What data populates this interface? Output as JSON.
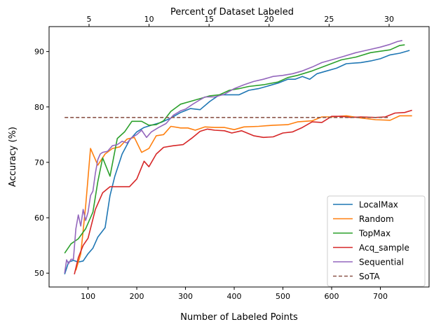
{
  "chart_data": {
    "type": "line",
    "title": "",
    "xlabel": "Number of Labeled Points",
    "ylabel": "Accuracy (%)",
    "top_xlabel": "Percent of Dataset Labeled",
    "xlim": [
      20,
      800
    ],
    "ylim": [
      47.5,
      94.5
    ],
    "top_xlim": [
      1.67,
      33.33
    ],
    "x_ticks": [
      100,
      200,
      300,
      400,
      500,
      600,
      700
    ],
    "y_ticks": [
      50,
      60,
      70,
      80,
      90
    ],
    "top_ticks": [
      5,
      10,
      15,
      20,
      25,
      30
    ],
    "grid": false,
    "legend_position": "lower-right",
    "series": [
      {
        "name": "LocalMax",
        "color": "#1f77b4",
        "points": [
          [
            52,
            49.8
          ],
          [
            60,
            52
          ],
          [
            70,
            52.3
          ],
          [
            80,
            52
          ],
          [
            90,
            52.2
          ],
          [
            100,
            53.5
          ],
          [
            110,
            54.5
          ],
          [
            120,
            56.5
          ],
          [
            135,
            58.2
          ],
          [
            145,
            64
          ],
          [
            155,
            67.5
          ],
          [
            170,
            71.5
          ],
          [
            185,
            74
          ],
          [
            200,
            75.5
          ],
          [
            215,
            76.3
          ],
          [
            230,
            76.7
          ],
          [
            250,
            77.2
          ],
          [
            270,
            78
          ],
          [
            290,
            79
          ],
          [
            310,
            79.7
          ],
          [
            330,
            79.5
          ],
          [
            350,
            81
          ],
          [
            370,
            82.2
          ],
          [
            390,
            82.2
          ],
          [
            410,
            82.2
          ],
          [
            430,
            83
          ],
          [
            450,
            83.3
          ],
          [
            470,
            83.8
          ],
          [
            490,
            84.3
          ],
          [
            510,
            85
          ],
          [
            525,
            85
          ],
          [
            540,
            85.5
          ],
          [
            555,
            85
          ],
          [
            570,
            86
          ],
          [
            590,
            86.5
          ],
          [
            610,
            87
          ],
          [
            630,
            87.8
          ],
          [
            660,
            88
          ],
          [
            680,
            88.3
          ],
          [
            700,
            88.7
          ],
          [
            720,
            89.4
          ],
          [
            740,
            89.7
          ],
          [
            760,
            90.2
          ]
        ]
      },
      {
        "name": "Random",
        "color": "#ff7f0e",
        "points": [
          [
            75,
            50.5
          ],
          [
            85,
            53.5
          ],
          [
            95,
            62
          ],
          [
            105,
            72.5
          ],
          [
            120,
            69.5
          ],
          [
            135,
            71.5
          ],
          [
            150,
            72.5
          ],
          [
            165,
            72.8
          ],
          [
            180,
            74.2
          ],
          [
            195,
            74.5
          ],
          [
            210,
            71.8
          ],
          [
            225,
            72.5
          ],
          [
            240,
            74.8
          ],
          [
            255,
            75
          ],
          [
            270,
            76.5
          ],
          [
            290,
            76.2
          ],
          [
            305,
            76.2
          ],
          [
            320,
            75.8
          ],
          [
            340,
            76.4
          ],
          [
            360,
            76.3
          ],
          [
            380,
            76.3
          ],
          [
            400,
            75.9
          ],
          [
            420,
            76.4
          ],
          [
            450,
            76.5
          ],
          [
            480,
            76.7
          ],
          [
            510,
            76.8
          ],
          [
            530,
            77.3
          ],
          [
            560,
            77.5
          ],
          [
            580,
            78.2
          ],
          [
            600,
            78.2
          ],
          [
            630,
            78.4
          ],
          [
            660,
            78
          ],
          [
            690,
            77.7
          ],
          [
            720,
            77.6
          ],
          [
            740,
            78.4
          ],
          [
            765,
            78.4
          ]
        ]
      },
      {
        "name": "TopMax",
        "color": "#2ca02c",
        "points": [
          [
            52,
            53.6
          ],
          [
            65,
            55.3
          ],
          [
            80,
            56.2
          ],
          [
            95,
            58
          ],
          [
            110,
            61
          ],
          [
            120,
            66.5
          ],
          [
            130,
            70.8
          ],
          [
            145,
            67.5
          ],
          [
            160,
            74.3
          ],
          [
            175,
            75.5
          ],
          [
            190,
            77.4
          ],
          [
            210,
            77.4
          ],
          [
            225,
            76.7
          ],
          [
            240,
            76.8
          ],
          [
            255,
            77.5
          ],
          [
            270,
            79.2
          ],
          [
            290,
            80.5
          ],
          [
            310,
            81
          ],
          [
            330,
            81.5
          ],
          [
            350,
            82
          ],
          [
            370,
            82.2
          ],
          [
            390,
            83
          ],
          [
            410,
            83.3
          ],
          [
            430,
            83.7
          ],
          [
            460,
            84
          ],
          [
            490,
            84.5
          ],
          [
            510,
            85.3
          ],
          [
            530,
            85.7
          ],
          [
            560,
            86.5
          ],
          [
            590,
            87.5
          ],
          [
            620,
            88.5
          ],
          [
            650,
            89
          ],
          [
            680,
            89.8
          ],
          [
            720,
            90.3
          ],
          [
            740,
            91.1
          ],
          [
            750,
            91.2
          ]
        ]
      },
      {
        "name": "Acq_sample",
        "color": "#d62728",
        "points": [
          [
            72,
            49.8
          ],
          [
            80,
            52.8
          ],
          [
            90,
            55
          ],
          [
            100,
            56.3
          ],
          [
            115,
            61.5
          ],
          [
            130,
            64.5
          ],
          [
            145,
            65.6
          ],
          [
            165,
            65.6
          ],
          [
            185,
            65.6
          ],
          [
            200,
            67
          ],
          [
            215,
            70.2
          ],
          [
            225,
            69.2
          ],
          [
            240,
            71.5
          ],
          [
            255,
            72.7
          ],
          [
            275,
            73
          ],
          [
            295,
            73.2
          ],
          [
            315,
            74.5
          ],
          [
            330,
            75.6
          ],
          [
            345,
            76
          ],
          [
            360,
            75.8
          ],
          [
            380,
            75.7
          ],
          [
            395,
            75.3
          ],
          [
            415,
            75.7
          ],
          [
            440,
            74.8
          ],
          [
            460,
            74.5
          ],
          [
            480,
            74.6
          ],
          [
            500,
            75.3
          ],
          [
            520,
            75.5
          ],
          [
            540,
            76.3
          ],
          [
            560,
            77.3
          ],
          [
            580,
            77.2
          ],
          [
            600,
            78.3
          ],
          [
            620,
            78.3
          ],
          [
            640,
            78.1
          ],
          [
            660,
            78.2
          ],
          [
            690,
            78.1
          ],
          [
            710,
            78.2
          ],
          [
            730,
            78.9
          ],
          [
            750,
            79
          ],
          [
            765,
            79.4
          ]
        ]
      },
      {
        "name": "Sequential",
        "color": "#9467bd",
        "points": [
          [
            52,
            50
          ],
          [
            56,
            52.4
          ],
          [
            60,
            51.7
          ],
          [
            65,
            52.5
          ],
          [
            70,
            52.5
          ],
          [
            75,
            58
          ],
          [
            80,
            60.5
          ],
          [
            85,
            58.5
          ],
          [
            90,
            61.5
          ],
          [
            95,
            59.5
          ],
          [
            100,
            61
          ],
          [
            105,
            64
          ],
          [
            110,
            64.8
          ],
          [
            115,
            68
          ],
          [
            120,
            70.5
          ],
          [
            125,
            71.5
          ],
          [
            130,
            71.8
          ],
          [
            140,
            72
          ],
          [
            150,
            73
          ],
          [
            160,
            73.2
          ],
          [
            170,
            73.8
          ],
          [
            180,
            73.5
          ],
          [
            190,
            74.5
          ],
          [
            200,
            75
          ],
          [
            210,
            75.8
          ],
          [
            220,
            74.5
          ],
          [
            230,
            75.5
          ],
          [
            245,
            76.3
          ],
          [
            260,
            77
          ],
          [
            275,
            78.5
          ],
          [
            290,
            79.3
          ],
          [
            300,
            79.6
          ],
          [
            315,
            80.5
          ],
          [
            330,
            81.3
          ],
          [
            340,
            81.8
          ],
          [
            360,
            81.8
          ],
          [
            380,
            82.3
          ],
          [
            400,
            83.3
          ],
          [
            420,
            84
          ],
          [
            440,
            84.6
          ],
          [
            460,
            85
          ],
          [
            480,
            85.5
          ],
          [
            500,
            85.7
          ],
          [
            520,
            86
          ],
          [
            540,
            86.5
          ],
          [
            560,
            87.2
          ],
          [
            580,
            88
          ],
          [
            600,
            88.5
          ],
          [
            620,
            89
          ],
          [
            650,
            89.8
          ],
          [
            680,
            90.4
          ],
          [
            700,
            90.8
          ],
          [
            720,
            91.3
          ],
          [
            735,
            91.8
          ],
          [
            745,
            92
          ]
        ]
      },
      {
        "name": "SoTA",
        "color": "#8c564b",
        "dashed": true,
        "points": [
          [
            52,
            78.1
          ],
          [
            720,
            78.1
          ]
        ]
      }
    ]
  }
}
